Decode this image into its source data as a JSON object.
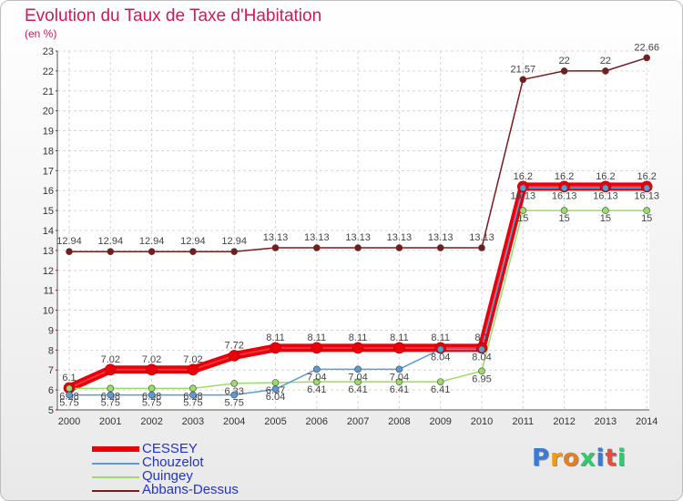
{
  "title": "Evolution du Taux de Taxe d'Habitation",
  "subtitle": "(en %)",
  "logo": {
    "text": "Proxiti",
    "colors": [
      "#3a7bd5",
      "#f39c12",
      "#e67e22",
      "#2ecc71",
      "#3a7bd5",
      "#e74c3c",
      "#2ecc71"
    ]
  },
  "chart_data": {
    "type": "line",
    "x": [
      "2000",
      "2001",
      "2002",
      "2003",
      "2004",
      "2005",
      "2006",
      "2007",
      "2008",
      "2009",
      "2010",
      "2011",
      "2012",
      "2013",
      "2014"
    ],
    "ylim": [
      5,
      23
    ],
    "yticks": [
      5,
      6,
      7,
      8,
      9,
      10,
      11,
      12,
      13,
      14,
      15,
      16,
      17,
      18,
      19,
      20,
      21,
      22,
      23
    ],
    "grid": true,
    "legend_position": "bottom-left",
    "series": [
      {
        "name": "CESSEY",
        "color": "#e8000b",
        "values": [
          6.1,
          7.02,
          7.02,
          7.02,
          7.72,
          8.11,
          8.11,
          8.11,
          8.11,
          8.11,
          8.11,
          16.2,
          16.2,
          16.2,
          16.2
        ],
        "labels": [
          "6.1",
          "7.02",
          "7.02",
          "7.02",
          "7.72",
          "8.11",
          "8.11",
          "8.11",
          "8.11",
          "8.11",
          "8.1",
          "16.2",
          "16.2",
          "16.2",
          "16.2"
        ]
      },
      {
        "name": "Chouzelot",
        "color": "#5b9bd5",
        "values": [
          5.75,
          5.75,
          5.75,
          5.75,
          5.75,
          6.04,
          7.04,
          7.04,
          7.04,
          8.04,
          8.04,
          16.13,
          16.13,
          16.13,
          16.13
        ],
        "labels": [
          "5.75",
          "5.75",
          "5.75",
          "5.75",
          "5.75",
          "6.04",
          "7.04",
          "7.04",
          "7.04",
          "8.04",
          "8.04",
          "16.13",
          "16.13",
          "16.13",
          "16.13"
        ]
      },
      {
        "name": "Quingey",
        "color": "#99dd66",
        "values": [
          6.08,
          6.08,
          6.08,
          6.08,
          6.33,
          6.37,
          6.41,
          6.41,
          6.41,
          6.41,
          6.95,
          15,
          15,
          15,
          15
        ],
        "labels": [
          "6.08",
          "6.08",
          "6.08",
          "6.08",
          "6.33",
          "6.37",
          "6.41",
          "6.41",
          "6.41",
          "6.41",
          "6.95",
          "15",
          "15",
          "15",
          "15"
        ]
      },
      {
        "name": "Abbans-Dessus",
        "color": "#7a1a1a",
        "values": [
          12.94,
          12.94,
          12.94,
          12.94,
          12.94,
          13.13,
          13.13,
          13.13,
          13.13,
          13.13,
          13.13,
          21.57,
          22,
          22,
          22.66
        ],
        "labels": [
          "12.94",
          "12.94",
          "12.94",
          "12.94",
          "12.94",
          "13.13",
          "13.13",
          "13.13",
          "13.13",
          "13.13",
          "13.13",
          "21.57",
          "22",
          "22",
          "22.66"
        ]
      }
    ]
  }
}
